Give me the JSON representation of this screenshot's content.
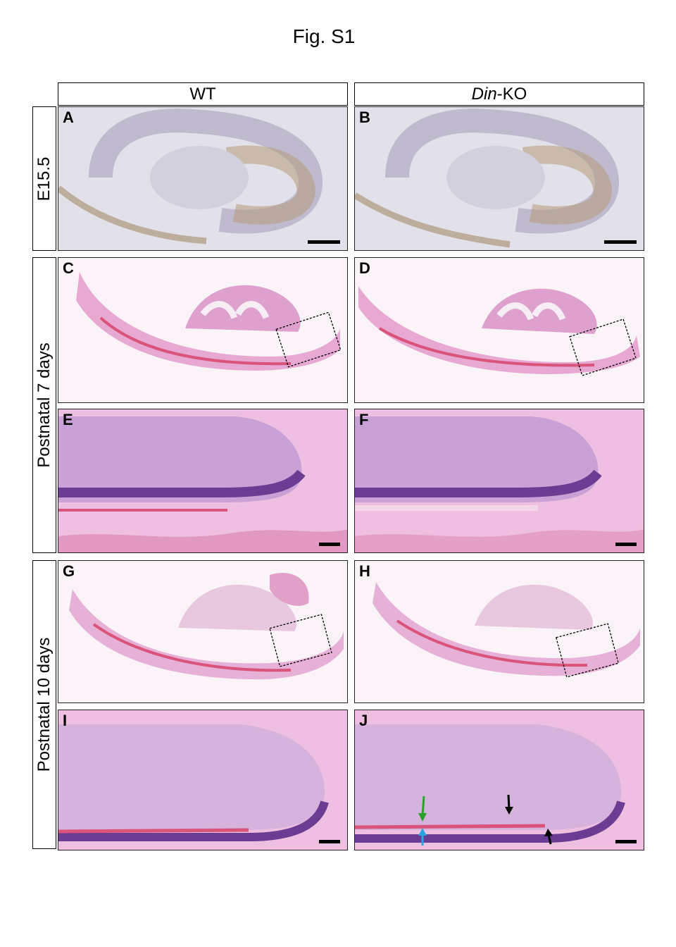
{
  "figure": {
    "title": "Fig. S1"
  },
  "columns": {
    "wt": "WT",
    "ko_italic": "Din",
    "ko_suffix": "-KO"
  },
  "rows": {
    "r1": "E15.5",
    "r2": "Postnatal 7 days",
    "r3": "Postnatal 10 days"
  },
  "panels": {
    "A": "A",
    "B": "B",
    "C": "C",
    "D": "D",
    "E": "E",
    "F": "F",
    "G": "G",
    "H": "H",
    "I": "I",
    "J": "J"
  },
  "colors": {
    "ihc_background": "#e2e1e9",
    "ihc_brown_stain": "#a58a6a",
    "he_pink": "#eebfe0",
    "he_purple": "#8a4fa8",
    "dentin_red": "#d9537a",
    "arrow_green": "#2aa12a",
    "arrow_blue": "#2aa7e0",
    "arrow_black": "#000000"
  }
}
